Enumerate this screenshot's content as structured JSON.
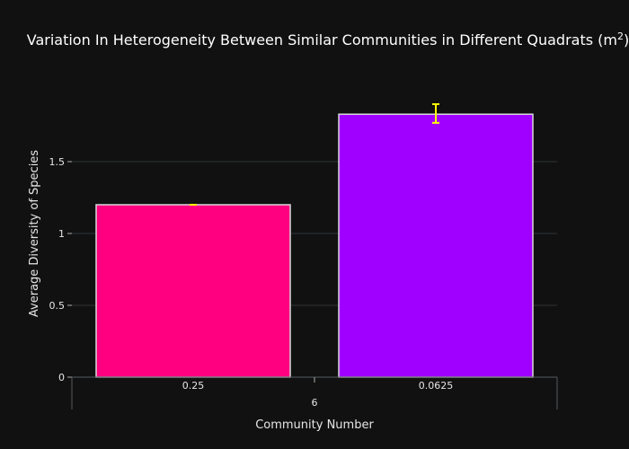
{
  "chart_data": {
    "type": "bar",
    "title": "Variation In Heterogeneity Between Similar Communities in Different Quadrats (m",
    "title_superscript": "2",
    "title_suffix": ")",
    "xlabel": "Community Number",
    "ylabel": "Average Diversity of Species",
    "group_label": "6",
    "categories": [
      "0.25",
      "0.0625"
    ],
    "values": [
      1.2,
      1.83
    ],
    "error_bars": [
      {
        "minus": 0.0,
        "plus": 0.0
      },
      {
        "minus": 0.06,
        "plus": 0.07
      }
    ],
    "bar_colors": [
      "#ff0080",
      "#a000ff"
    ],
    "bar_border_color": "#d9d9d9",
    "error_bar_color": "#ffff00",
    "ylim": [
      0,
      2.0
    ],
    "yticks": [
      0,
      0.5,
      1,
      1.5
    ],
    "ytick_labels": [
      "0",
      "0.5",
      "1",
      "1.5"
    ],
    "grid": true,
    "background_color": "#111111",
    "grid_color": "#2f3338"
  }
}
